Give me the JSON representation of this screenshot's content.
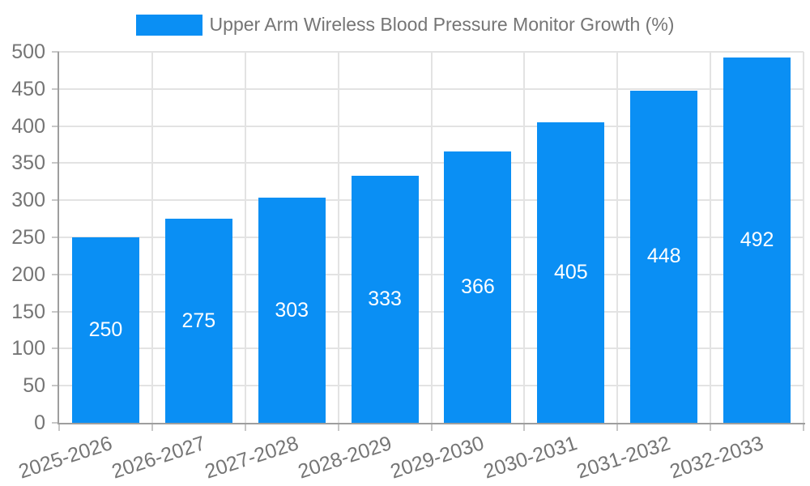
{
  "chart_data": {
    "type": "bar",
    "title": "Upper Arm Wireless Blood Pressure Monitor Growth (%)",
    "categories": [
      "2025-2026",
      "2026-2027",
      "2027-2028",
      "2028-2029",
      "2029-2030",
      "2030-2031",
      "2031-2032",
      "2032-2033"
    ],
    "series": [
      {
        "name": "Upper Arm Wireless Blood Pressure Monitor Growth (%)",
        "values": [
          250,
          275,
          303,
          333,
          366,
          405,
          448,
          492
        ]
      }
    ],
    "data_labels": [
      "250",
      "275",
      "303",
      "333",
      "366",
      "405",
      "448",
      "492"
    ],
    "xlabel": "",
    "ylabel": "",
    "ylim": [
      0,
      500
    ],
    "y_ticks": [
      0,
      50,
      100,
      150,
      200,
      250,
      300,
      350,
      400,
      450,
      500
    ],
    "grid": true,
    "legend_position": "top",
    "x_label_rotation_deg": -18,
    "colors": {
      "bar": "#0a8ff4",
      "tick_text": "#757575",
      "legend_text": "#757575",
      "gridline": "#e3e3e3",
      "axis": "#9e9e9e",
      "tick_mark": "#c7c7c7",
      "data_label": "#ffffff",
      "background": "#ffffff"
    }
  },
  "legend": {
    "label": "Upper Arm Wireless Blood Pressure Monitor Growth (%)"
  }
}
